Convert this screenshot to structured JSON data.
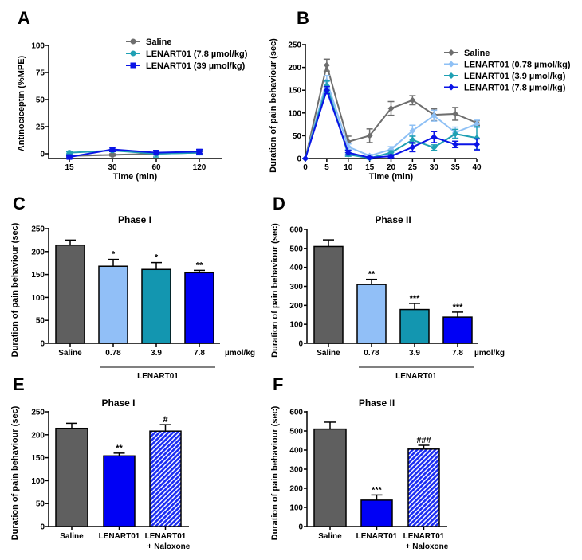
{
  "chart_data": [
    {
      "id": "A",
      "panel_letter": "A",
      "type": "line",
      "title": "",
      "xlabel": "Time (min)",
      "ylabel": "Antinociceptin (%MPE)",
      "x": [
        15,
        30,
        60,
        120
      ],
      "x_tick_labels": [
        "15",
        "30",
        "60",
        "120"
      ],
      "x_scale": "categorical",
      "ylim": [
        0,
        100
      ],
      "y_ticks": [
        0,
        25,
        50,
        75,
        100
      ],
      "legend_position": "top-right",
      "series": [
        {
          "name": "Saline",
          "color": "#6e6e6e",
          "marker": "circle",
          "values": [
            -2,
            -1,
            0,
            1
          ],
          "errors": [
            1,
            1,
            1,
            1
          ]
        },
        {
          "name": "LENART01 (7.8 µmol/kg)",
          "color": "#1fa0b4",
          "marker": "circle",
          "values": [
            1,
            3,
            0,
            1
          ],
          "errors": [
            1,
            1,
            3,
            2
          ]
        },
        {
          "name": "LENART01 (39 µmol/kg)",
          "color": "#0a14e6",
          "marker": "square",
          "values": [
            -3,
            4,
            1,
            2
          ],
          "errors": [
            1,
            2,
            2,
            2
          ]
        }
      ]
    },
    {
      "id": "B",
      "panel_letter": "B",
      "type": "line",
      "title": "",
      "xlabel": "Time (min)",
      "ylabel": "Duration of pain behaviour (sec)",
      "x": [
        0,
        5,
        10,
        15,
        20,
        25,
        30,
        35,
        40
      ],
      "x_tick_labels": [
        "0",
        "5",
        "10",
        "15",
        "20",
        "25",
        "30",
        "35",
        "40"
      ],
      "xlim": [
        0,
        40
      ],
      "ylim": [
        0,
        250
      ],
      "y_ticks": [
        0,
        50,
        100,
        150,
        200,
        250
      ],
      "legend_position": "top-right",
      "series": [
        {
          "name": "Saline",
          "color": "#6e6e6e",
          "marker": "diamond",
          "values": [
            0,
            205,
            37,
            50,
            110,
            128,
            96,
            98,
            78
          ],
          "errors": [
            0,
            13,
            12,
            15,
            15,
            10,
            13,
            14,
            5
          ]
        },
        {
          "name": "LENART01 (0.78 µmol/kg)",
          "color": "#8ec0f5",
          "marker": "diamond",
          "values": [
            0,
            170,
            26,
            6,
            20,
            61,
            94,
            57,
            76
          ],
          "errors": [
            0,
            12,
            6,
            3,
            6,
            12,
            12,
            12,
            8
          ]
        },
        {
          "name": "LENART01 (3.9 µmol/kg)",
          "color": "#1fa0b4",
          "marker": "diamond",
          "values": [
            0,
            160,
            9,
            1,
            13,
            41,
            24,
            54,
            45
          ],
          "errors": [
            0,
            10,
            4,
            2,
            4,
            8,
            6,
            10,
            25
          ]
        },
        {
          "name": "LENART01 (7.8 µmol/kg)",
          "color": "#0a14e6",
          "marker": "diamond",
          "values": [
            0,
            150,
            13,
            2,
            5,
            25,
            47,
            31,
            31
          ],
          "errors": [
            0,
            8,
            5,
            2,
            3,
            10,
            12,
            7,
            12
          ]
        }
      ]
    },
    {
      "id": "C",
      "panel_letter": "C",
      "type": "bar",
      "title": "Phase I",
      "xlabel": "",
      "ylabel": "Duration of pain behaviour (sec)",
      "categories": [
        "Saline",
        "0.78",
        "3.9",
        "7.8"
      ],
      "unit_label": "µmol/kg",
      "group_label": "LENART01",
      "group_span": [
        1,
        3
      ],
      "ylim": [
        0,
        250
      ],
      "y_ticks": [
        0,
        50,
        100,
        150,
        200,
        250
      ],
      "values": [
        214,
        168,
        161,
        154
      ],
      "errors": [
        11,
        15,
        15,
        5
      ],
      "colors": [
        "#5f5f5f",
        "#91bff7",
        "#1396b0",
        "#0000f5"
      ],
      "patterns": [
        "solid",
        "solid",
        "solid",
        "solid"
      ],
      "significance": [
        "",
        "*",
        "*",
        "**"
      ]
    },
    {
      "id": "D",
      "panel_letter": "D",
      "type": "bar",
      "title": "Phase II",
      "xlabel": "",
      "ylabel": "Duration of pain behaviour (sec)",
      "categories": [
        "Saline",
        "0.78",
        "3.9",
        "7.8"
      ],
      "unit_label": "µmol/kg",
      "group_label": "LENART01",
      "group_span": [
        1,
        3
      ],
      "ylim": [
        0,
        600
      ],
      "y_ticks": [
        0,
        100,
        200,
        300,
        400,
        500,
        600
      ],
      "values": [
        510,
        310,
        178,
        138
      ],
      "errors": [
        35,
        27,
        32,
        26
      ],
      "colors": [
        "#5f5f5f",
        "#91bff7",
        "#1396b0",
        "#0000f5"
      ],
      "patterns": [
        "solid",
        "solid",
        "solid",
        "solid"
      ],
      "significance": [
        "",
        "**",
        "***",
        "***"
      ]
    },
    {
      "id": "E",
      "panel_letter": "E",
      "type": "bar",
      "title": "Phase I",
      "xlabel": "",
      "ylabel": "Duration of pain behaviour (sec)",
      "categories": [
        "Saline",
        "LENART01",
        "LENART01|+ Naloxone"
      ],
      "ylim": [
        0,
        250
      ],
      "y_ticks": [
        0,
        50,
        100,
        150,
        200,
        250
      ],
      "values": [
        214,
        154,
        208
      ],
      "errors": [
        11,
        6,
        14
      ],
      "colors": [
        "#5f5f5f",
        "#0000f5",
        "#2a3af5"
      ],
      "patterns": [
        "solid",
        "solid",
        "hatched"
      ],
      "significance": [
        "",
        "**",
        "#"
      ]
    },
    {
      "id": "F",
      "panel_letter": "F",
      "type": "bar",
      "title": "Phase II",
      "xlabel": "",
      "ylabel": "Duration of pain behaviour (sec)",
      "categories": [
        "Saline",
        "LENART01",
        "LENART01|+ Naloxone"
      ],
      "ylim": [
        0,
        600
      ],
      "y_ticks": [
        0,
        100,
        200,
        300,
        400,
        500,
        600
      ],
      "values": [
        510,
        138,
        405
      ],
      "errors": [
        36,
        27,
        20
      ],
      "colors": [
        "#5f5f5f",
        "#0000f5",
        "#2a3af5"
      ],
      "patterns": [
        "solid",
        "solid",
        "hatched"
      ],
      "significance": [
        "",
        "***",
        "###"
      ]
    }
  ]
}
